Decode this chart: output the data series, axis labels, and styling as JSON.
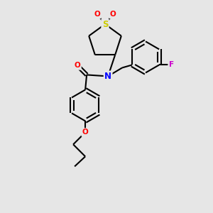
{
  "background_color": "#e6e6e6",
  "bond_color": "#000000",
  "bond_width": 1.5,
  "atom_colors": {
    "S": "#cccc00",
    "O": "#ff0000",
    "N": "#0000ff",
    "F": "#cc00cc",
    "C": "#000000"
  },
  "font_size": 7.5,
  "fig_size": [
    3.0,
    3.0
  ],
  "dpi": 100
}
